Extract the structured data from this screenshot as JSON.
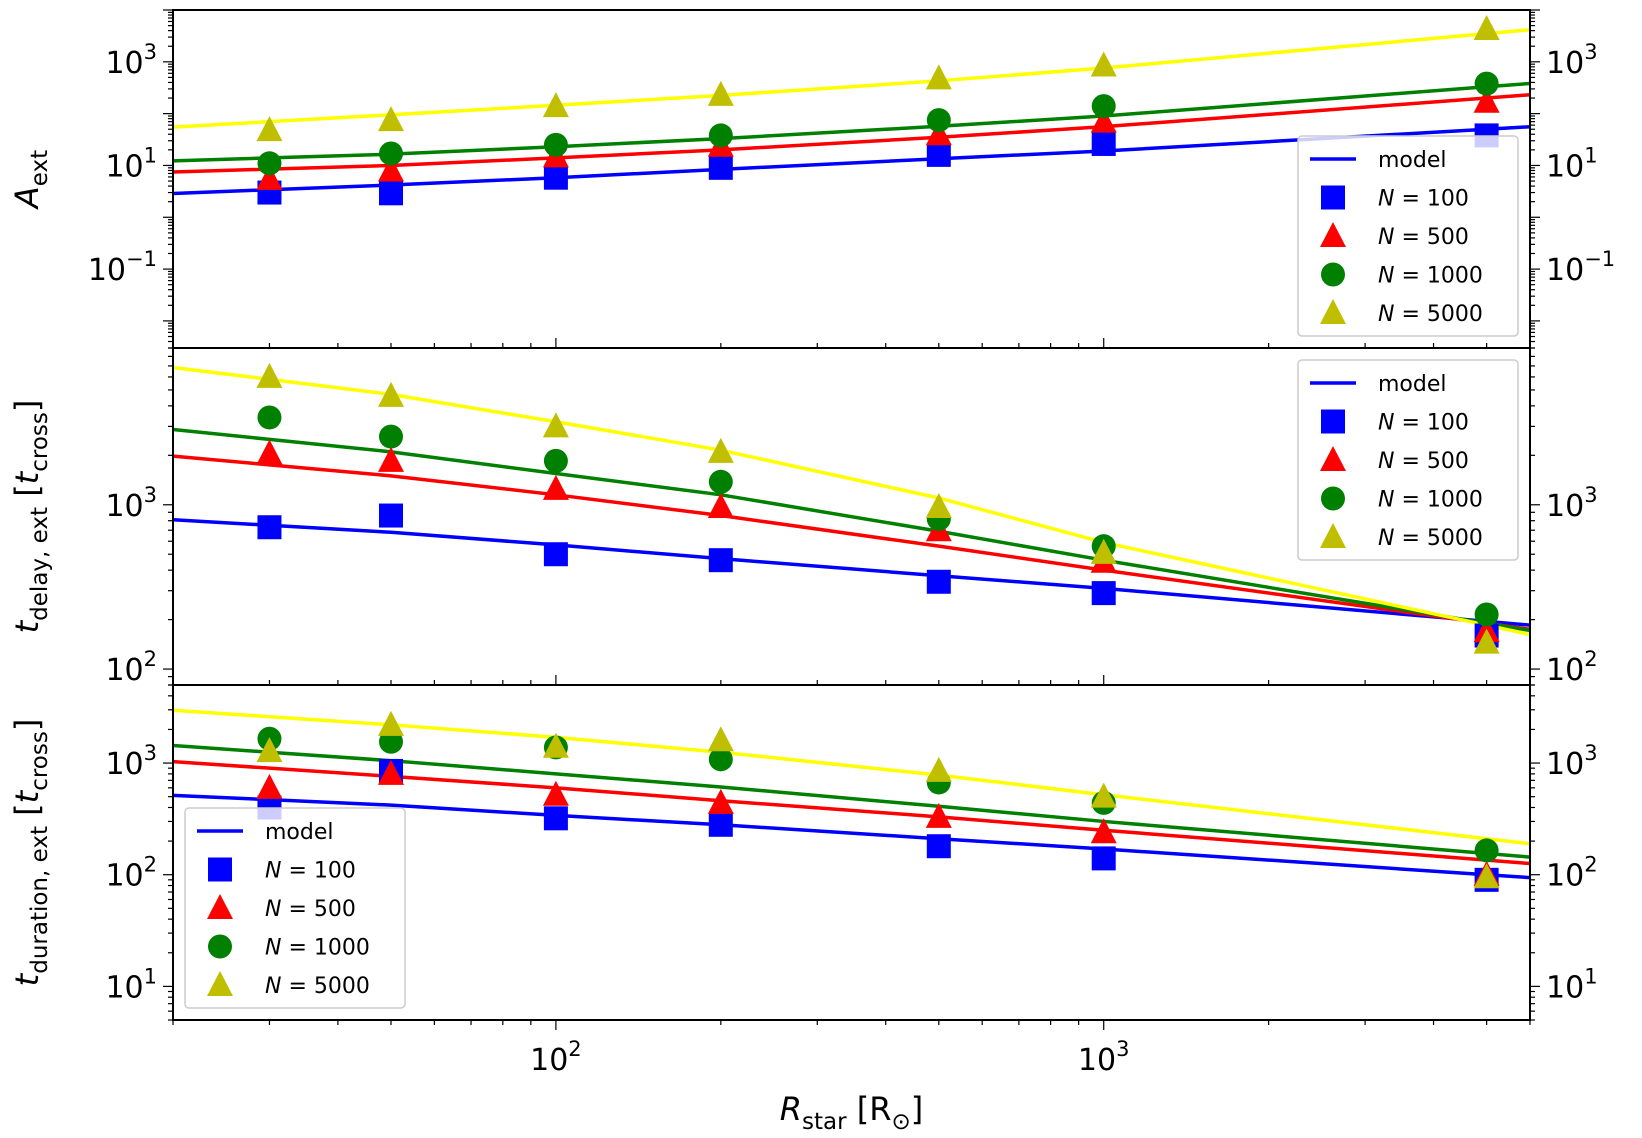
{
  "chart_data": [
    {
      "type": "scatter",
      "panel": "A_ext",
      "ylabel": {
        "base": "A",
        "sub": "ext",
        "unit_base": "",
        "unit_sub": ""
      },
      "xscale": "log",
      "yscale": "log",
      "xlim": [
        20,
        6000
      ],
      "ylim": [
        0.003,
        10000
      ],
      "yticks": [
        {
          "value": 0.1,
          "exp": "−1"
        },
        {
          "value": 10,
          "exp": "1"
        },
        {
          "value": 1000,
          "exp": "3"
        }
      ],
      "legend_position": "lower-right",
      "x": [
        30,
        50,
        100,
        200,
        500,
        1000,
        5000
      ],
      "series": [
        {
          "name": "N = 100",
          "nvalue": "100",
          "marker": "square",
          "color": "#0000ff",
          "values": [
            3.0,
            2.9,
            5.8,
            9.0,
            16.0,
            26.0,
            38.0
          ],
          "model": [
            3.4,
            4.2,
            5.8,
            8.4,
            13.5,
            19.0,
            50.0
          ]
        },
        {
          "name": "N = 500",
          "nvalue": "500",
          "marker": "triangle",
          "color": "#ff0000",
          "values": [
            5.5,
            8.0,
            15.0,
            24.0,
            40.0,
            70.0,
            170.0
          ],
          "model": [
            8.5,
            10.0,
            14.0,
            20.0,
            35.0,
            56.0,
            200.0
          ]
        },
        {
          "name": "N = 1000",
          "nvalue": "1000",
          "marker": "circle",
          "color": "#008000",
          "values": [
            11.0,
            17.0,
            25.0,
            38.0,
            75.0,
            140.0,
            380.0
          ],
          "model": [
            14.0,
            16.5,
            23.0,
            33.0,
            57.0,
            90.0,
            330.0
          ]
        },
        {
          "name": "N = 5000",
          "nvalue": "5000",
          "marker": "triangle",
          "color": "#bfbf00",
          "values": [
            48.0,
            75.0,
            140.0,
            230.0,
            480.0,
            850.0,
            4300.0
          ],
          "model": [
            70.0,
            95.0,
            145.0,
            225.0,
            430.0,
            760.0,
            3500.0
          ],
          "model_color": "#ffff00"
        }
      ]
    },
    {
      "type": "scatter",
      "panel": "t_delay_ext",
      "ylabel": {
        "base": "t",
        "sub": "delay, ext",
        "unit_base": "t",
        "unit_sub": "cross"
      },
      "xscale": "log",
      "yscale": "log",
      "xlim": [
        20,
        6000
      ],
      "ylim": [
        80,
        9000
      ],
      "yticks": [
        {
          "value": 100,
          "exp": "2"
        },
        {
          "value": 1000,
          "exp": "3"
        }
      ],
      "legend_position": "upper-right",
      "x": [
        30,
        50,
        100,
        200,
        500,
        1000,
        5000
      ],
      "series": [
        {
          "name": "N = 100",
          "nvalue": "100",
          "marker": "square",
          "color": "#0000ff",
          "values": [
            730,
            860,
            500,
            460,
            340,
            290,
            160
          ],
          "model": [
            750,
            680,
            570,
            470,
            370,
            310,
            195
          ]
        },
        {
          "name": "N = 500",
          "nvalue": "500",
          "marker": "triangle",
          "color": "#ff0000",
          "values": [
            2050,
            1850,
            1250,
            970,
            700,
            450,
            170
          ],
          "model": [
            1750,
            1500,
            1150,
            860,
            560,
            400,
            190
          ]
        },
        {
          "name": "N = 1000",
          "nvalue": "1000",
          "marker": "circle",
          "color": "#008000",
          "values": [
            3400,
            2600,
            1850,
            1380,
            820,
            560,
            215
          ],
          "model": [
            2500,
            2100,
            1550,
            1150,
            690,
            460,
            190
          ]
        },
        {
          "name": "N = 5000",
          "nvalue": "5000",
          "marker": "triangle",
          "color": "#bfbf00",
          "values": [
            6000,
            4600,
            3000,
            2100,
            970,
            510,
            145
          ],
          "model": [
            5800,
            4700,
            3200,
            2150,
            1100,
            590,
            185
          ],
          "model_color": "#ffff00"
        }
      ]
    },
    {
      "type": "scatter",
      "panel": "t_duration_ext",
      "ylabel": {
        "base": "t",
        "sub": "duration, ext",
        "unit_base": "t",
        "unit_sub": "cross"
      },
      "xscale": "log",
      "yscale": "log",
      "xlim": [
        20,
        6000
      ],
      "ylim": [
        5,
        5000
      ],
      "yticks": [
        {
          "value": 10,
          "exp": "1"
        },
        {
          "value": 100,
          "exp": "2"
        },
        {
          "value": 1000,
          "exp": "3"
        }
      ],
      "xticks": [
        {
          "value": 100,
          "exp": "2"
        },
        {
          "value": 1000,
          "exp": "3"
        }
      ],
      "legend_position": "lower-left",
      "x": [
        30,
        50,
        100,
        200,
        500,
        1000,
        5000
      ],
      "series": [
        {
          "name": "N = 100",
          "nvalue": "100",
          "marker": "square",
          "color": "#0000ff",
          "values": [
            400,
            850,
            320,
            280,
            180,
            140,
            90
          ],
          "model": [
            470,
            420,
            340,
            280,
            210,
            170,
            100
          ]
        },
        {
          "name": "N = 500",
          "nvalue": "500",
          "marker": "triangle",
          "color": "#ff0000",
          "values": [
            600,
            800,
            520,
            440,
            330,
            240,
            100
          ],
          "model": [
            900,
            760,
            600,
            460,
            330,
            250,
            135
          ]
        },
        {
          "name": "N = 1000",
          "nvalue": "1000",
          "marker": "circle",
          "color": "#008000",
          "values": [
            1650,
            1550,
            1380,
            1080,
            670,
            440,
            165
          ],
          "model": [
            1250,
            1050,
            800,
            610,
            410,
            300,
            155
          ]
        },
        {
          "name": "N = 5000",
          "nvalue": "5000",
          "marker": "triangle",
          "color": "#bfbf00",
          "values": [
            1280,
            2200,
            1400,
            1600,
            850,
            500,
            95
          ],
          "model": [
            2600,
            2200,
            1700,
            1250,
            780,
            520,
            210
          ],
          "model_color": "#ffff00"
        }
      ]
    }
  ],
  "xlabel": {
    "base": "R",
    "sub": "star",
    "unit": "[R",
    "unit_sub": "⊙",
    "unit_close": "]"
  },
  "legend": {
    "model_label": "model",
    "n_symbol": "N",
    "equals": " = "
  }
}
